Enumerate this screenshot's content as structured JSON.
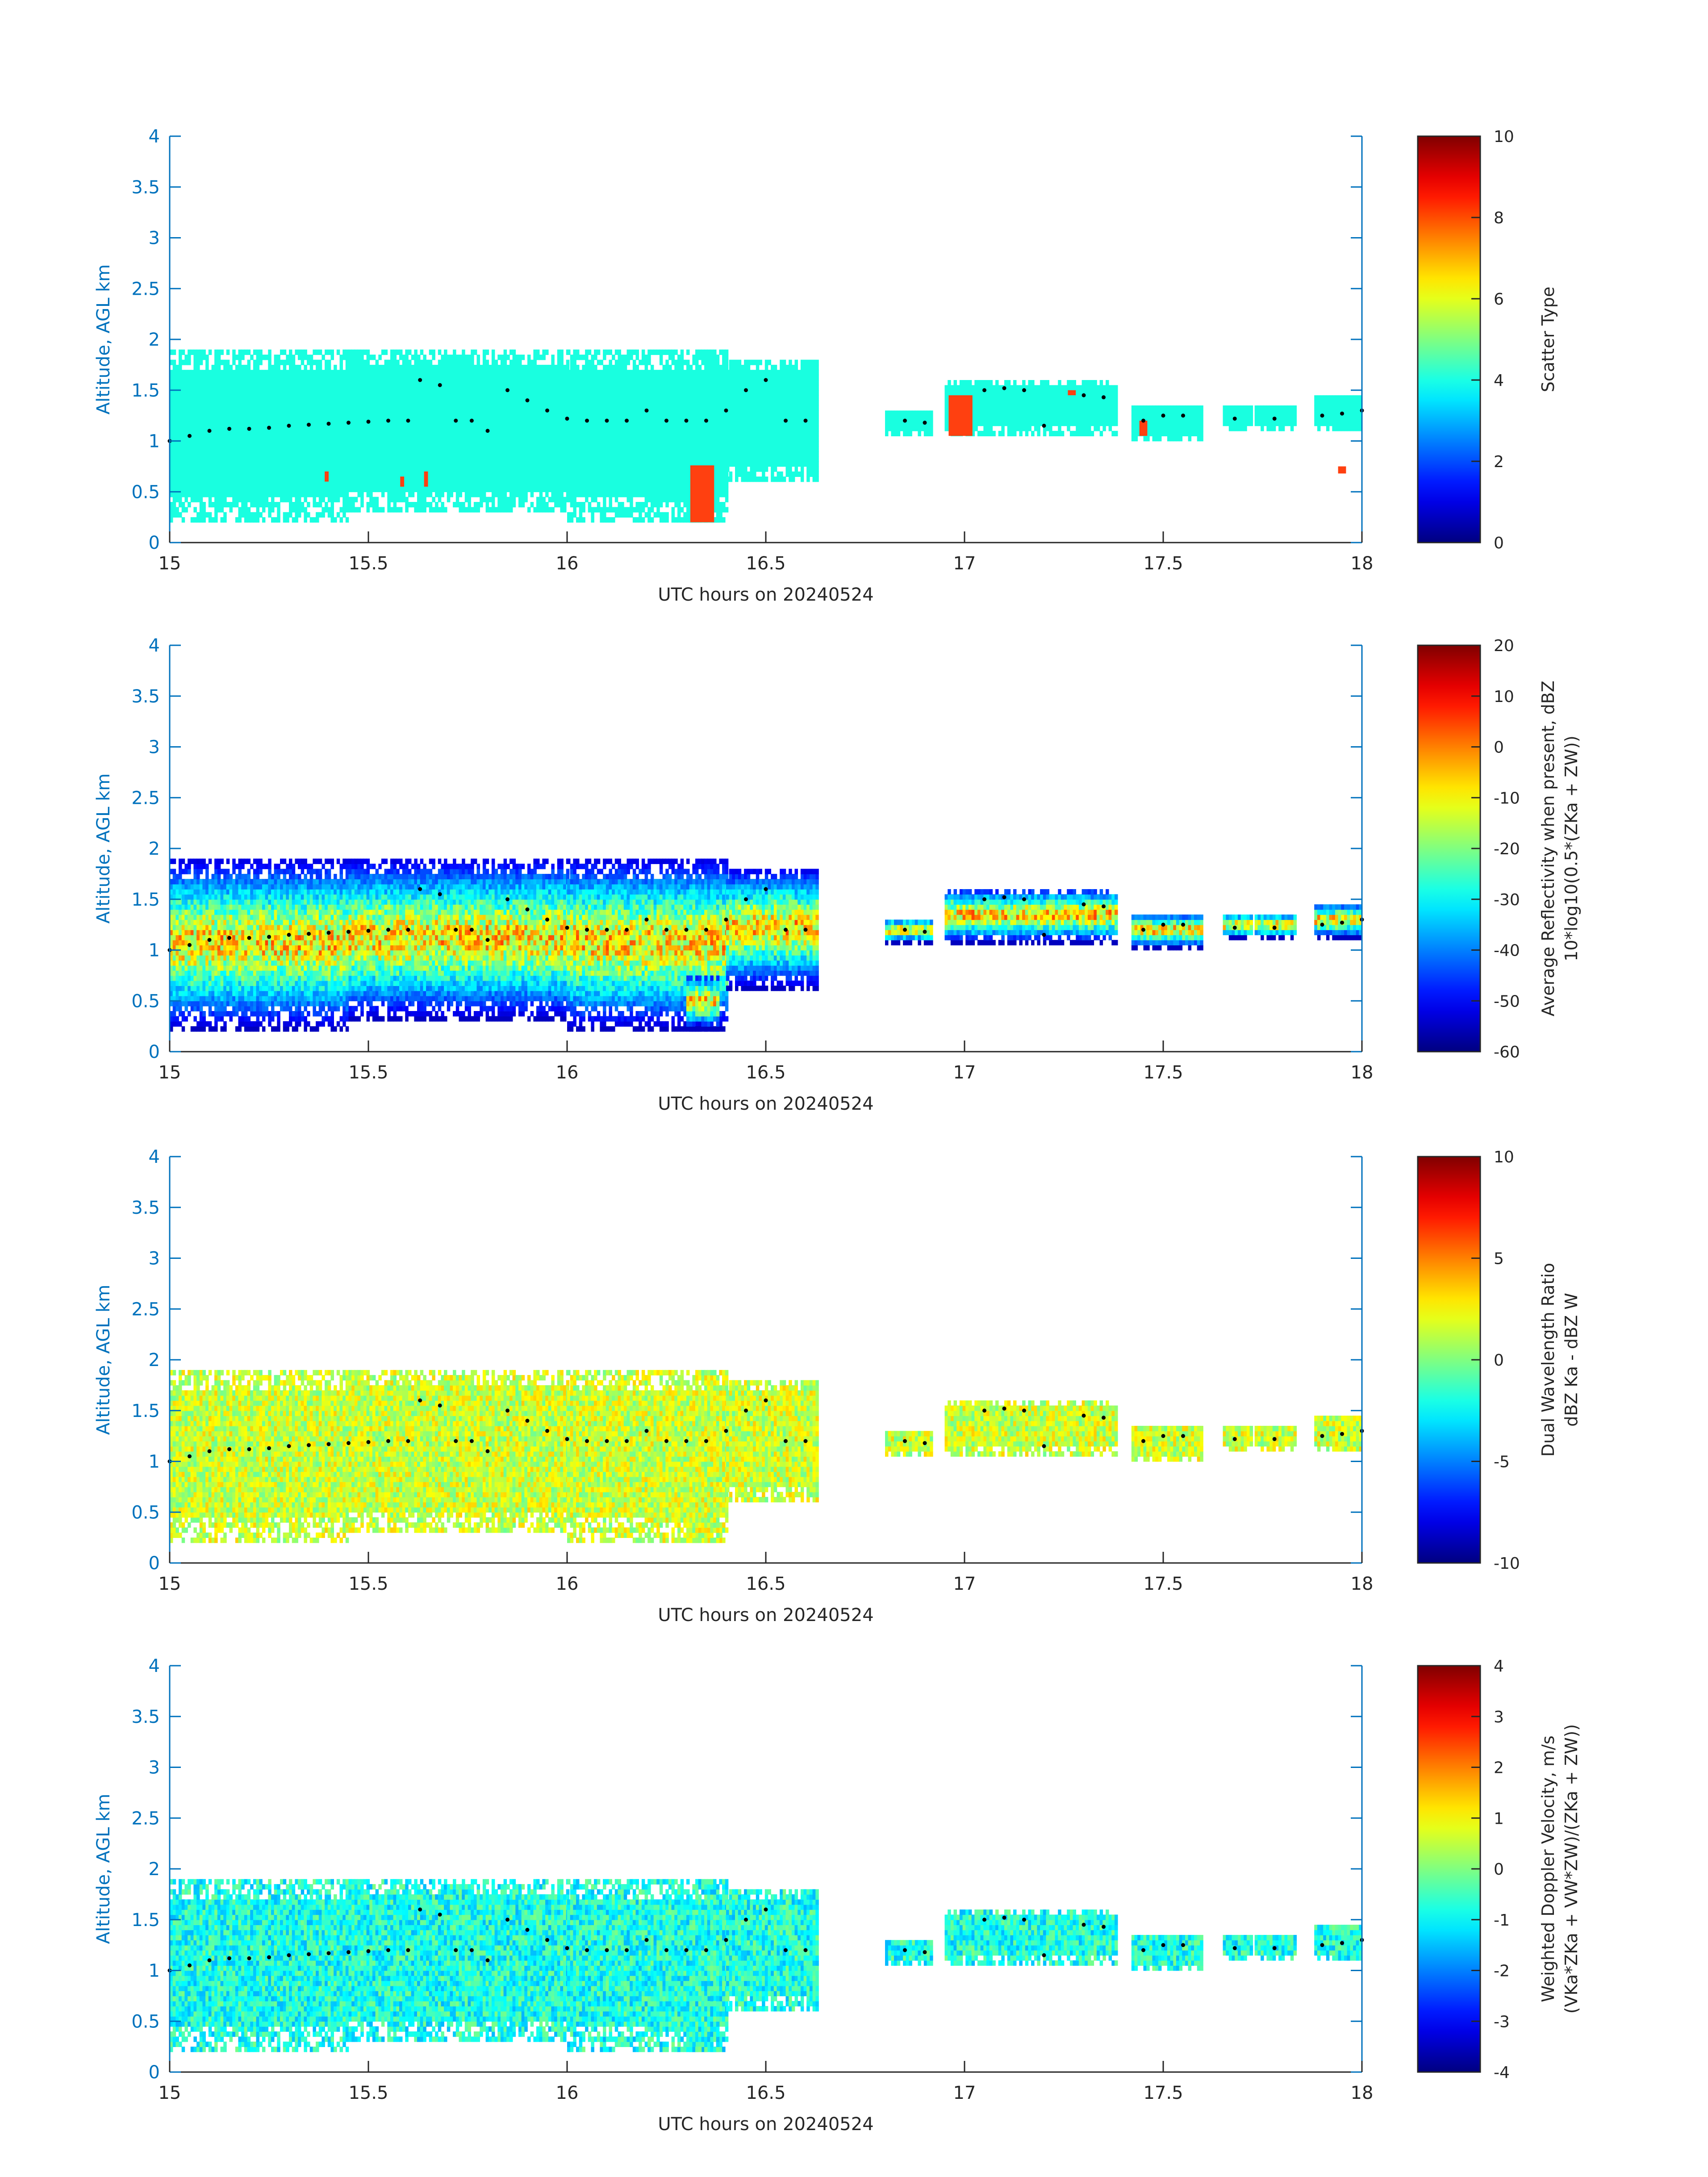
{
  "figure": {
    "date": "20240524"
  },
  "chart_data": [
    {
      "type": "heatmap",
      "id": "scatter-type",
      "xlabel": "UTC hours on 20240524",
      "ylabel": "Altitude, AGL km",
      "xlim": [
        15,
        18
      ],
      "ylim": [
        0,
        4
      ],
      "xticks": [
        "15",
        "15.5",
        "16",
        "16.5",
        "17",
        "17.5",
        "18"
      ],
      "yticks": [
        "0",
        "0.5",
        "1",
        "1.5",
        "2",
        "2.5",
        "3",
        "3.5",
        "4"
      ],
      "colorbar": {
        "label_lines": [
          "Scatter Type"
        ],
        "clim": [
          0,
          10
        ],
        "ticks": [
          "0",
          "2",
          "4",
          "6",
          "8",
          "10"
        ]
      },
      "primary_value": 3.5,
      "secondary_value": 8.2
    },
    {
      "type": "heatmap",
      "id": "reflectivity",
      "xlabel": "UTC hours on 20240524",
      "ylabel": "Altitude, AGL km",
      "xlim": [
        15,
        18
      ],
      "ylim": [
        0,
        4
      ],
      "xticks": [
        "15",
        "15.5",
        "16",
        "16.5",
        "17",
        "17.5",
        "18"
      ],
      "yticks": [
        "0",
        "0.5",
        "1",
        "1.5",
        "2",
        "2.5",
        "3",
        "3.5",
        "4"
      ],
      "colorbar": {
        "label_lines": [
          "Average Reflectivity when present, dBZ",
          "10*log10(0.5*(ZKa + ZW))"
        ],
        "clim": [
          -60,
          20
        ],
        "ticks": [
          "-60",
          "-50",
          "-40",
          "-30",
          "-20",
          "-10",
          "0",
          "10",
          "20"
        ]
      },
      "core_dbz": 5,
      "edge_dbz": -55
    },
    {
      "type": "heatmap",
      "id": "dual-wavelength-ratio",
      "xlabel": "UTC hours on 20240524",
      "ylabel": "Altitude, AGL km",
      "xlim": [
        15,
        18
      ],
      "ylim": [
        0,
        4
      ],
      "xticks": [
        "15",
        "15.5",
        "16",
        "16.5",
        "17",
        "17.5",
        "18"
      ],
      "yticks": [
        "0",
        "0.5",
        "1",
        "1.5",
        "2",
        "2.5",
        "3",
        "3.5",
        "4"
      ],
      "colorbar": {
        "label_lines": [
          "Dual Wavelength Ratio",
          "dBZ Ka - dBZ W"
        ],
        "clim": [
          -10,
          10
        ],
        "ticks": [
          "-10",
          "-5",
          "0",
          "5",
          "10"
        ]
      },
      "typical_value": 1.5
    },
    {
      "type": "heatmap",
      "id": "doppler-velocity",
      "xlabel": "UTC hours on 20240524",
      "ylabel": "Altitude, AGL km",
      "xlim": [
        15,
        18
      ],
      "ylim": [
        0,
        4
      ],
      "xticks": [
        "15",
        "15.5",
        "16",
        "16.5",
        "17",
        "17.5",
        "18"
      ],
      "yticks": [
        "0",
        "0.5",
        "1",
        "1.5",
        "2",
        "2.5",
        "3",
        "3.5",
        "4"
      ],
      "colorbar": {
        "label_lines": [
          "Weighted Doppler Velocity, m/s",
          "(VKa*ZKa + VW*ZW)/(ZKa + ZW))"
        ],
        "clim": [
          -4,
          4
        ],
        "ticks": [
          "-4",
          "-3",
          "-2",
          "-1",
          "0",
          "1",
          "2",
          "3",
          "4"
        ]
      },
      "typical_value": -0.8
    }
  ],
  "echo_regions": [
    {
      "x0": 15.0,
      "x1": 15.45,
      "y0": 0.2,
      "y1": 1.9
    },
    {
      "x0": 15.45,
      "x1": 16.0,
      "y0": 0.3,
      "y1": 1.9
    },
    {
      "x0": 16.0,
      "x1": 16.4,
      "y0": 0.2,
      "y1": 1.9
    },
    {
      "x0": 16.4,
      "x1": 16.63,
      "y0": 0.6,
      "y1": 1.8
    },
    {
      "x0": 16.3,
      "x1": 16.38,
      "y0": 0.2,
      "y1": 0.75
    },
    {
      "x0": 16.8,
      "x1": 16.92,
      "y0": 1.05,
      "y1": 1.3
    },
    {
      "x0": 16.95,
      "x1": 17.38,
      "y0": 1.05,
      "y1": 1.6
    },
    {
      "x0": 17.42,
      "x1": 17.6,
      "y0": 1.0,
      "y1": 1.35
    },
    {
      "x0": 17.65,
      "x1": 17.72,
      "y0": 1.1,
      "y1": 1.35
    },
    {
      "x0": 17.73,
      "x1": 17.83,
      "y0": 1.1,
      "y1": 1.35
    },
    {
      "x0": 17.88,
      "x1": 18.0,
      "y0": 1.1,
      "y1": 1.45
    }
  ],
  "secondary_patches": [
    {
      "x0": 16.31,
      "x1": 16.37,
      "y0": 0.2,
      "y1": 0.76
    },
    {
      "x0": 16.96,
      "x1": 17.02,
      "y0": 1.05,
      "y1": 1.45
    },
    {
      "x0": 17.44,
      "x1": 17.46,
      "y0": 1.05,
      "y1": 1.2
    },
    {
      "x0": 15.39,
      "x1": 15.4,
      "y0": 0.6,
      "y1": 0.7
    },
    {
      "x0": 15.58,
      "x1": 15.59,
      "y0": 0.55,
      "y1": 0.65
    },
    {
      "x0": 15.64,
      "x1": 15.65,
      "y0": 0.55,
      "y1": 0.7
    },
    {
      "x0": 17.94,
      "x1": 17.96,
      "y0": 0.68,
      "y1": 0.75
    },
    {
      "x0": 17.26,
      "x1": 17.28,
      "y0": 1.45,
      "y1": 1.5
    }
  ],
  "cloud_base_dots": [
    [
      15.0,
      1.0
    ],
    [
      15.05,
      1.05
    ],
    [
      15.1,
      1.1
    ],
    [
      15.15,
      1.12
    ],
    [
      15.2,
      1.12
    ],
    [
      15.25,
      1.13
    ],
    [
      15.3,
      1.15
    ],
    [
      15.35,
      1.16
    ],
    [
      15.4,
      1.17
    ],
    [
      15.45,
      1.18
    ],
    [
      15.5,
      1.19
    ],
    [
      15.55,
      1.2
    ],
    [
      15.6,
      1.2
    ],
    [
      15.63,
      1.6
    ],
    [
      15.68,
      1.55
    ],
    [
      15.72,
      1.2
    ],
    [
      15.76,
      1.2
    ],
    [
      15.8,
      1.1
    ],
    [
      15.85,
      1.5
    ],
    [
      15.9,
      1.4
    ],
    [
      15.95,
      1.3
    ],
    [
      16.0,
      1.22
    ],
    [
      16.05,
      1.2
    ],
    [
      16.1,
      1.2
    ],
    [
      16.15,
      1.2
    ],
    [
      16.2,
      1.3
    ],
    [
      16.25,
      1.2
    ],
    [
      16.3,
      1.2
    ],
    [
      16.35,
      1.2
    ],
    [
      16.4,
      1.3
    ],
    [
      16.45,
      1.5
    ],
    [
      16.5,
      1.6
    ],
    [
      16.55,
      1.2
    ],
    [
      16.6,
      1.2
    ],
    [
      16.85,
      1.2
    ],
    [
      16.9,
      1.18
    ],
    [
      17.05,
      1.5
    ],
    [
      17.1,
      1.52
    ],
    [
      17.15,
      1.5
    ],
    [
      17.2,
      1.15
    ],
    [
      17.3,
      1.45
    ],
    [
      17.35,
      1.43
    ],
    [
      17.45,
      1.2
    ],
    [
      17.5,
      1.25
    ],
    [
      17.55,
      1.25
    ],
    [
      17.68,
      1.22
    ],
    [
      17.78,
      1.22
    ],
    [
      17.9,
      1.25
    ],
    [
      17.95,
      1.27
    ],
    [
      18.0,
      1.3
    ]
  ],
  "colors": {
    "axis_blue": "#0072bd",
    "text_dark": "#262626",
    "dot": "#000000",
    "scatter_main": "#19ffe0",
    "scatter_secondary": "#ff4010"
  }
}
